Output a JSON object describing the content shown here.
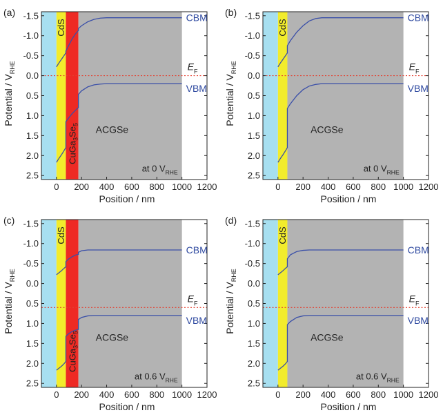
{
  "colors": {
    "electrolyte": "#a7dff0",
    "cds": "#f2ec2c",
    "cugase": "#ee2a24",
    "acgse": "#b3b3b3",
    "band_line": "#3a4fa8",
    "fermi_line": "#e43f2f",
    "label_blue": "#2f4aa0"
  },
  "chart_data": [
    {
      "type": "line",
      "panel_label": "(a)",
      "xlabel": "Position / nm",
      "ylabel_main": "Potential / V",
      "ylabel_sub": "RHE",
      "xlim": [
        -120,
        1200
      ],
      "ylim": [
        2.6,
        -1.6
      ],
      "y_inverted": true,
      "xticks": [
        0,
        200,
        400,
        600,
        800,
        1000,
        1200
      ],
      "yticks": [
        -1.5,
        -1.0,
        -0.5,
        0.0,
        0.5,
        1.0,
        1.5,
        2.0,
        2.5
      ],
      "ytick_labels": [
        "-1.5",
        "-1.0",
        "-0.5",
        "0.0",
        "0.5",
        "1.0",
        "1.5",
        "2.0",
        "2.5"
      ],
      "regions": [
        {
          "name": "electrolyte",
          "x": [
            -120,
            0
          ],
          "label": ""
        },
        {
          "name": "cds",
          "x": [
            0,
            75
          ],
          "label": "CdS"
        },
        {
          "name": "cugase",
          "x": [
            75,
            175
          ],
          "label": "CuGa3Se5"
        },
        {
          "name": "acgse",
          "x": [
            175,
            1000
          ],
          "label": "ACGSe"
        }
      ],
      "fermi_level": 0.0,
      "annotation": {
        "text": "at 0 V",
        "sub": "RHE"
      },
      "band_labels": {
        "cbm": "CBM",
        "vbm": "VBM",
        "ef_main": "E",
        "ef_sub": "F"
      },
      "series": [
        {
          "name": "CBM",
          "x": [
            0,
            20,
            40,
            60,
            75,
            75,
            100,
            125,
            150,
            175,
            175,
            200,
            250,
            300,
            350,
            400,
            500,
            1000
          ],
          "y": [
            -0.22,
            -0.32,
            -0.41,
            -0.5,
            -0.57,
            -0.62,
            -0.77,
            -0.92,
            -1.04,
            -1.13,
            -1.18,
            -1.25,
            -1.35,
            -1.41,
            -1.44,
            -1.45,
            -1.45,
            -1.45
          ]
        },
        {
          "name": "VBM",
          "x": [
            0,
            20,
            40,
            60,
            75,
            75,
            100,
            125,
            150,
            175,
            175,
            200,
            250,
            300,
            350,
            400,
            500,
            1000
          ],
          "y": [
            2.17,
            2.07,
            1.98,
            1.88,
            1.8,
            1.15,
            1.05,
            0.95,
            0.87,
            0.8,
            0.47,
            0.38,
            0.28,
            0.23,
            0.21,
            0.2,
            0.2,
            0.2
          ]
        }
      ]
    },
    {
      "type": "line",
      "panel_label": "(b)",
      "xlabel": "Position / nm",
      "ylabel_main": "Potential / V",
      "ylabel_sub": "RHE",
      "xlim": [
        -120,
        1200
      ],
      "ylim": [
        2.6,
        -1.6
      ],
      "y_inverted": true,
      "xticks": [
        0,
        200,
        400,
        600,
        800,
        1000,
        1200
      ],
      "yticks": [
        -1.5,
        -1.0,
        -0.5,
        0.0,
        0.5,
        1.0,
        1.5,
        2.0,
        2.5
      ],
      "ytick_labels": [
        "-1.5",
        "-1.0",
        "-0.5",
        "0.0",
        "0.5",
        "1.0",
        "1.5",
        "2.0",
        "2.5"
      ],
      "regions": [
        {
          "name": "electrolyte",
          "x": [
            -120,
            0
          ],
          "label": ""
        },
        {
          "name": "cds",
          "x": [
            0,
            75
          ],
          "label": "CdS"
        },
        {
          "name": "acgse",
          "x": [
            75,
            1000
          ],
          "label": "ACGSe"
        }
      ],
      "fermi_level": 0.0,
      "annotation": {
        "text": "at 0 V",
        "sub": "RHE"
      },
      "band_labels": {
        "cbm": "CBM",
        "vbm": "VBM",
        "ef_main": "E",
        "ef_sub": "F"
      },
      "series": [
        {
          "name": "CBM",
          "x": [
            0,
            20,
            40,
            60,
            75,
            75,
            100,
            150,
            200,
            250,
            300,
            350,
            400,
            1000
          ],
          "y": [
            -0.22,
            -0.32,
            -0.41,
            -0.5,
            -0.57,
            -0.75,
            -0.88,
            -1.09,
            -1.25,
            -1.37,
            -1.43,
            -1.45,
            -1.45,
            -1.45
          ]
        },
        {
          "name": "VBM",
          "x": [
            0,
            20,
            40,
            60,
            75,
            75,
            100,
            150,
            200,
            250,
            300,
            350,
            400,
            1000
          ],
          "y": [
            2.17,
            2.07,
            1.98,
            1.88,
            1.8,
            0.82,
            0.7,
            0.5,
            0.35,
            0.26,
            0.22,
            0.2,
            0.2,
            0.2
          ]
        }
      ]
    },
    {
      "type": "line",
      "panel_label": "(c)",
      "xlabel": "Position / nm",
      "ylabel_main": "Potential / V",
      "ylabel_sub": "RHE",
      "xlim": [
        -120,
        1200
      ],
      "ylim": [
        2.6,
        -1.6
      ],
      "y_inverted": true,
      "xticks": [
        0,
        200,
        400,
        600,
        800,
        1000,
        1200
      ],
      "yticks": [
        -1.5,
        -1.0,
        -0.5,
        0.0,
        0.5,
        1.0,
        1.5,
        2.0,
        2.5
      ],
      "ytick_labels": [
        "-1.5",
        "-1.0",
        "-0.5",
        "0.0",
        "0.5",
        "1.0",
        "1.5",
        "2.0",
        "2.5"
      ],
      "regions": [
        {
          "name": "electrolyte",
          "x": [
            -120,
            0
          ],
          "label": ""
        },
        {
          "name": "cds",
          "x": [
            0,
            75
          ],
          "label": "CdS"
        },
        {
          "name": "cugase",
          "x": [
            75,
            175
          ],
          "label": "CuGa3Se5"
        },
        {
          "name": "acgse",
          "x": [
            175,
            1000
          ],
          "label": "ACGSe"
        }
      ],
      "fermi_level": 0.6,
      "annotation": {
        "text": "at 0.6 V",
        "sub": "RHE"
      },
      "band_labels": {
        "cbm": "CBM",
        "vbm": "VBM",
        "ef_main": "E",
        "ef_sub": "F"
      },
      "series": [
        {
          "name": "CBM",
          "x": [
            0,
            20,
            40,
            60,
            75,
            75,
            100,
            125,
            150,
            175,
            175,
            200,
            250,
            300,
            1000
          ],
          "y": [
            -0.22,
            -0.27,
            -0.32,
            -0.38,
            -0.42,
            -0.55,
            -0.62,
            -0.67,
            -0.71,
            -0.73,
            -0.78,
            -0.82,
            -0.84,
            -0.84,
            -0.84
          ]
        },
        {
          "name": "VBM",
          "x": [
            0,
            20,
            40,
            60,
            75,
            75,
            100,
            125,
            150,
            175,
            175,
            200,
            250,
            300,
            1000
          ],
          "y": [
            2.17,
            2.12,
            2.07,
            2.01,
            1.95,
            1.32,
            1.25,
            1.2,
            1.17,
            1.15,
            0.9,
            0.85,
            0.81,
            0.8,
            0.8
          ]
        }
      ]
    },
    {
      "type": "line",
      "panel_label": "(d)",
      "xlabel": "Position / nm",
      "ylabel_main": "Potential / V",
      "ylabel_sub": "RHE",
      "xlim": [
        -120,
        1200
      ],
      "ylim": [
        2.6,
        -1.6
      ],
      "y_inverted": true,
      "xticks": [
        0,
        200,
        400,
        600,
        800,
        1000,
        1200
      ],
      "yticks": [
        -1.5,
        -1.0,
        -0.5,
        0.0,
        0.5,
        1.0,
        1.5,
        2.0,
        2.5
      ],
      "ytick_labels": [
        "-1.5",
        "-1.0",
        "-0.5",
        "0.0",
        "0.5",
        "1.0",
        "1.5",
        "2.0",
        "2.5"
      ],
      "regions": [
        {
          "name": "electrolyte",
          "x": [
            -120,
            0
          ],
          "label": ""
        },
        {
          "name": "cds",
          "x": [
            0,
            75
          ],
          "label": "CdS"
        },
        {
          "name": "acgse",
          "x": [
            75,
            1000
          ],
          "label": "ACGSe"
        }
      ],
      "fermi_level": 0.6,
      "annotation": {
        "text": "at 0.6 V",
        "sub": "RHE"
      },
      "band_labels": {
        "cbm": "CBM",
        "vbm": "VBM",
        "ef_main": "E",
        "ef_sub": "F"
      },
      "series": [
        {
          "name": "CBM",
          "x": [
            0,
            20,
            40,
            60,
            75,
            75,
            100,
            150,
            200,
            250,
            1000
          ],
          "y": [
            -0.22,
            -0.27,
            -0.32,
            -0.38,
            -0.42,
            -0.62,
            -0.72,
            -0.8,
            -0.83,
            -0.84,
            -0.84
          ]
        },
        {
          "name": "VBM",
          "x": [
            0,
            20,
            40,
            60,
            75,
            75,
            100,
            150,
            200,
            250,
            1000
          ],
          "y": [
            2.17,
            2.12,
            2.07,
            2.01,
            1.95,
            1.03,
            0.95,
            0.85,
            0.81,
            0.8,
            0.8
          ]
        }
      ]
    }
  ]
}
